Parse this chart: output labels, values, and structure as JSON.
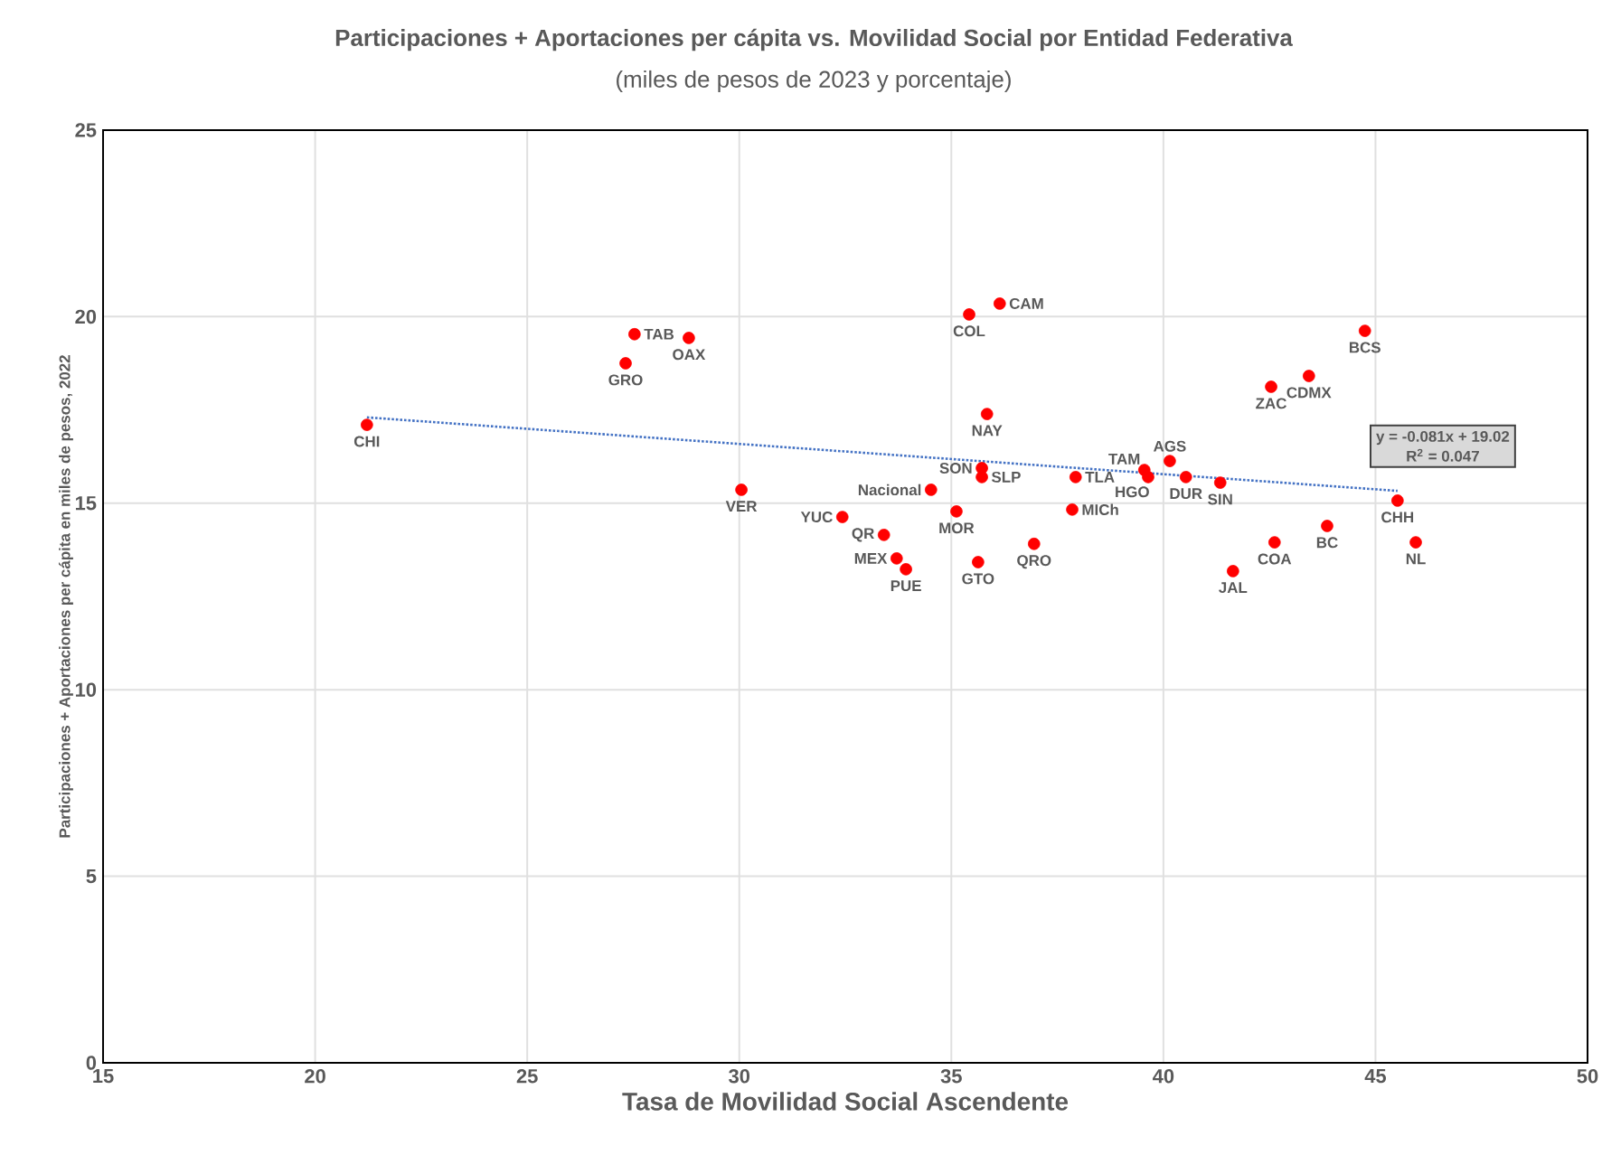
{
  "chart_data": {
    "type": "scatter",
    "title": "Participaciones + Aportaciones per cápita vs. Movilidad Social por Entidad Federativa",
    "subtitle": "(miles de pesos de 2023 y porcentaje)",
    "xlabel": "Tasa de Movilidad Social Ascendente",
    "ylabel": "Participaciones + Aportaciones per cápita en miles de pesos, 2022",
    "xlim": [
      15,
      50
    ],
    "ylim": [
      0,
      25
    ],
    "xticks": [
      15,
      20,
      25,
      30,
      35,
      40,
      45,
      50
    ],
    "yticks": [
      0,
      5,
      10,
      15,
      20,
      25
    ],
    "grid": true,
    "series": [
      {
        "type": "scatter",
        "color": "#ff0000",
        "marker": "circle",
        "x": [
          21.22,
          27.53,
          27.32,
          28.81,
          30.05,
          32.43,
          33.41,
          33.71,
          33.93,
          34.52,
          35.12,
          35.63,
          35.72,
          35.72,
          35.84,
          35.42,
          36.14,
          36.95,
          37.85,
          37.93,
          39.55,
          39.64,
          40.15,
          40.53,
          41.34,
          41.64,
          42.54,
          42.62,
          43.86,
          43.43,
          44.75,
          45.52,
          45.95
        ],
        "values": [
          17.1,
          19.53,
          18.75,
          19.43,
          15.36,
          14.63,
          14.15,
          13.52,
          13.23,
          15.36,
          14.78,
          13.42,
          15.94,
          15.7,
          17.39,
          20.06,
          20.35,
          13.91,
          14.83,
          15.7,
          15.89,
          15.7,
          16.13,
          15.7,
          15.55,
          13.18,
          18.12,
          13.95,
          14.39,
          18.41,
          19.62,
          15.07,
          13.95
        ]
      },
      {
        "type": "line",
        "color": "#4472c4",
        "line_style": "dotted",
        "marker": "none",
        "x": [
          21.22,
          45.52
        ],
        "values": [
          17.3,
          15.33
        ]
      }
    ],
    "annotations": [
      {
        "text": "CHI",
        "x": 21.22,
        "y": 17.1
      },
      {
        "text": "TAB",
        "x": 27.53,
        "y": 19.53
      },
      {
        "text": "GRO",
        "x": 27.32,
        "y": 18.75
      },
      {
        "text": "OAX",
        "x": 28.81,
        "y": 19.43
      },
      {
        "text": "VER",
        "x": 30.05,
        "y": 15.36
      },
      {
        "text": "YUC",
        "x": 32.43,
        "y": 14.63
      },
      {
        "text": "QR",
        "x": 33.41,
        "y": 14.15
      },
      {
        "text": "MEX",
        "x": 33.71,
        "y": 13.52
      },
      {
        "text": "PUE",
        "x": 33.93,
        "y": 13.23
      },
      {
        "text": "Nacional",
        "x": 34.52,
        "y": 15.36
      },
      {
        "text": "MOR",
        "x": 35.12,
        "y": 14.78
      },
      {
        "text": "GTO",
        "x": 35.63,
        "y": 13.42
      },
      {
        "text": "SON",
        "x": 35.72,
        "y": 15.94
      },
      {
        "text": "SLP",
        "x": 35.72,
        "y": 15.7
      },
      {
        "text": "NAY",
        "x": 35.84,
        "y": 17.39
      },
      {
        "text": "COL",
        "x": 35.42,
        "y": 20.06
      },
      {
        "text": "CAM",
        "x": 36.14,
        "y": 20.35
      },
      {
        "text": "QRO",
        "x": 36.95,
        "y": 13.91
      },
      {
        "text": "MICh",
        "x": 37.85,
        "y": 14.83
      },
      {
        "text": "TLA",
        "x": 37.93,
        "y": 15.7
      },
      {
        "text": "TAM",
        "x": 39.55,
        "y": 15.89
      },
      {
        "text": "HGO",
        "x": 39.64,
        "y": 15.7
      },
      {
        "text": "AGS",
        "x": 40.15,
        "y": 16.13
      },
      {
        "text": "DUR",
        "x": 40.53,
        "y": 15.7
      },
      {
        "text": "SIN",
        "x": 41.34,
        "y": 15.55
      },
      {
        "text": "JAL",
        "x": 41.64,
        "y": 13.18
      },
      {
        "text": "ZAC",
        "x": 42.54,
        "y": 18.12
      },
      {
        "text": "COA",
        "x": 42.62,
        "y": 13.95
      },
      {
        "text": "BC",
        "x": 43.86,
        "y": 14.39
      },
      {
        "text": "CDMX",
        "x": 43.43,
        "y": 18.41
      },
      {
        "text": "BCS",
        "x": 44.75,
        "y": 19.62
      },
      {
        "text": "CHH",
        "x": 45.52,
        "y": 15.07
      },
      {
        "text": "NL",
        "x": 45.95,
        "y": 13.95
      },
      "y = -0.081x + 19.02",
      "R$^{2}$ = 0.047"
    ]
  }
}
